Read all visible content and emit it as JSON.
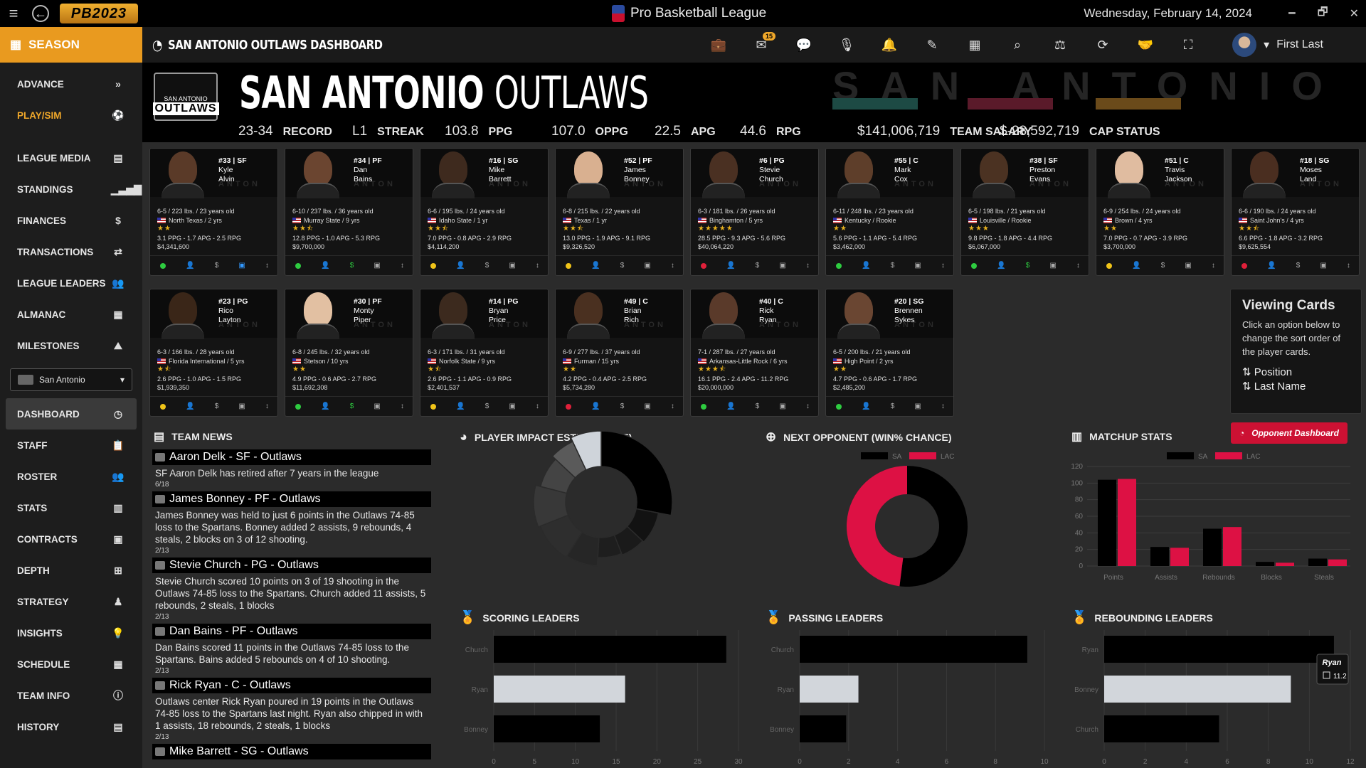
{
  "topbar": {
    "logo": "PB2023",
    "title": "Pro Basketball League",
    "date": "Wednesday, February 14, 2024",
    "win_min": "🗕",
    "win_restore": "🗗",
    "win_close": "✕"
  },
  "sidebar": {
    "season_label": "SEASON",
    "items_top": [
      {
        "label": "ADVANCE",
        "icon": "»"
      },
      {
        "label": "PLAY/SIM",
        "icon": "⚽"
      }
    ],
    "items_mid": [
      {
        "label": "LEAGUE MEDIA",
        "icon": "▤"
      },
      {
        "label": "STANDINGS",
        "icon": "▁▃▅▇"
      },
      {
        "label": "FINANCES",
        "icon": "$"
      },
      {
        "label": "TRANSACTIONS",
        "icon": "⇄"
      },
      {
        "label": "LEAGUE LEADERS",
        "icon": "👥"
      },
      {
        "label": "ALMANAC",
        "icon": "▦"
      },
      {
        "label": "MILESTONES",
        "icon": "⛰"
      }
    ],
    "team_select": "San Antonio",
    "items_team": [
      {
        "label": "DASHBOARD",
        "icon": "◷"
      },
      {
        "label": "STAFF",
        "icon": "📋"
      },
      {
        "label": "ROSTER",
        "icon": "👥"
      },
      {
        "label": "STATS",
        "icon": "▥"
      },
      {
        "label": "CONTRACTS",
        "icon": "▣"
      },
      {
        "label": "DEPTH",
        "icon": "⊞"
      },
      {
        "label": "STRATEGY",
        "icon": "♟"
      },
      {
        "label": "INSIGHTS",
        "icon": "💡"
      },
      {
        "label": "SCHEDULE",
        "icon": "▦"
      },
      {
        "label": "TEAM INFO",
        "icon": "ⓘ"
      },
      {
        "label": "HISTORY",
        "icon": "▤"
      }
    ]
  },
  "header": {
    "title": "SAN ANTONIO OUTLAWS DASHBOARD",
    "mail_badge": "15",
    "user": "First Last"
  },
  "banner": {
    "team_city": "SAN ANTONIO",
    "team_nick": "OUTLAWS",
    "bg_text": "SAN ANTONIO",
    "logo_top": "SAN ANTONIO",
    "logo_word": "OUTLAWS",
    "stats": [
      {
        "value": "23-34",
        "label": "RECORD"
      },
      {
        "value": "L1",
        "label": "STREAK"
      },
      {
        "value": "103.8",
        "label": "PPG"
      },
      {
        "value": "107.0",
        "label": "OPPG"
      },
      {
        "value": "22.5",
        "label": "APG"
      },
      {
        "value": "44.6",
        "label": "RPG"
      },
      {
        "value": "$141,006,719",
        "label": "TEAM SALARY"
      },
      {
        "value": "$-28,592,719",
        "label": "CAP STATUS"
      }
    ]
  },
  "players": [
    {
      "num": "#33 | SF",
      "first": "Kyle",
      "last": "Alvin",
      "bio": "6-5 / 223 lbs. / 23 years old",
      "school": "North Texas / 2 yrs",
      "stars": "★★",
      "line": "3.1 PPG - 1.7 APG - 2.5 RPG",
      "salary": "$4,341,600",
      "status": "#2ecc40"
    },
    {
      "num": "#34 | PF",
      "first": "Dan",
      "last": "Bains",
      "bio": "6-10 / 237 lbs. / 36 years old",
      "school": "Murray State / 9 yrs",
      "stars": "★★⯪",
      "line": "12.8 PPG - 1.0 APG - 5.3 RPG",
      "salary": "$9,700,000",
      "status": "#2ecc40"
    },
    {
      "num": "#16 | SG",
      "first": "Mike",
      "last": "Barrett",
      "bio": "6-6 / 195 lbs. / 24 years old",
      "school": "Idaho State / 1 yr",
      "stars": "★★⯪",
      "line": "7.0 PPG - 0.8 APG - 2.9 RPG",
      "salary": "$4,114,200",
      "status": "#f0c419"
    },
    {
      "num": "#52 | PF",
      "first": "James",
      "last": "Bonney",
      "bio": "6-8 / 215 lbs. / 22 years old",
      "school": "Texas / 1 yr",
      "stars": "★★⯪",
      "line": "13.0 PPG - 1.9 APG - 9.1 RPG",
      "salary": "$9,326,520",
      "status": "#f0c419"
    },
    {
      "num": "#6 | PG",
      "first": "Stevie",
      "last": "Church",
      "bio": "6-3 / 181 lbs. / 26 years old",
      "school": "Binghamton / 5 yrs",
      "stars": "★★★★★",
      "line": "28.5 PPG - 9.3 APG - 5.6 RPG",
      "salary": "$40,064,220",
      "status": "#e0203a"
    },
    {
      "num": "#55 | C",
      "first": "Mark",
      "last": "Cox",
      "bio": "6-11 / 248 lbs. / 23 years old",
      "school": "Kentucky / Rookie",
      "stars": "★★",
      "line": "5.6 PPG - 1.1 APG - 5.4 RPG",
      "salary": "$3,462,000",
      "status": "#2ecc40"
    },
    {
      "num": "#38 | SF",
      "first": "Preston",
      "last": "Evans",
      "bio": "6-5 / 198 lbs. / 21 years old",
      "school": "Louisville / Rookie",
      "stars": "★★★",
      "line": "9.8 PPG - 1.8 APG - 4.4 RPG",
      "salary": "$6,067,000",
      "status": "#2ecc40"
    },
    {
      "num": "#51 | C",
      "first": "Travis",
      "last": "Jackson",
      "bio": "6-9 / 254 lbs. / 24 years old",
      "school": "Brown / 4 yrs",
      "stars": "★★",
      "line": "7.0 PPG - 0.7 APG - 3.9 RPG",
      "salary": "$3,700,000",
      "status": "#f0c419"
    },
    {
      "num": "#18 | SG",
      "first": "Moses",
      "last": "Land",
      "bio": "6-6 / 190 lbs. / 24 years old",
      "school": "Saint John's / 4 yrs",
      "stars": "★★⯪",
      "line": "6.6 PPG - 1.8 APG - 3.2 RPG",
      "salary": "$9,625,554",
      "status": "#e0203a"
    },
    {
      "num": "#23 | PG",
      "first": "Rico",
      "last": "Layton",
      "bio": "6-3 / 166 lbs. / 28 years old",
      "school": "Florida International / 5 yrs",
      "stars": "★⯪",
      "line": "2.6 PPG - 1.0 APG - 1.5 RPG",
      "salary": "$1,939,350",
      "status": "#f0c419"
    },
    {
      "num": "#30 | PF",
      "first": "Monty",
      "last": "Piper",
      "bio": "6-8 / 245 lbs. / 32 years old",
      "school": "Stetson / 10 yrs",
      "stars": "★★",
      "line": "4.9 PPG - 0.6 APG - 2.7 RPG",
      "salary": "$11,692,308",
      "status": "#2ecc40"
    },
    {
      "num": "#14 | PG",
      "first": "Bryan",
      "last": "Price",
      "bio": "6-3 / 171 lbs. / 31 years old",
      "school": "Norfolk State / 9 yrs",
      "stars": "★⯪",
      "line": "2.6 PPG - 1.1 APG - 0.9 RPG",
      "salary": "$2,401,537",
      "status": "#f0c419"
    },
    {
      "num": "#49 | C",
      "first": "Brian",
      "last": "Rich",
      "bio": "6-9 / 277 lbs. / 37 years old",
      "school": "Furman / 15 yrs",
      "stars": "★★",
      "line": "4.2 PPG - 0.4 APG - 2.5 RPG",
      "salary": "$5,734,280",
      "status": "#e0203a"
    },
    {
      "num": "#40 | C",
      "first": "Rick",
      "last": "Ryan",
      "bio": "7-1 / 287 lbs. / 27 years old",
      "school": "Arkansas-Little Rock / 6 yrs",
      "stars": "★★★⯪",
      "line": "16.1 PPG - 2.4 APG - 11.2 RPG",
      "salary": "$20,000,000",
      "status": "#2ecc40"
    },
    {
      "num": "#20 | SG",
      "first": "Brennen",
      "last": "Sykes",
      "bio": "6-5 / 200 lbs. / 21 years old",
      "school": "High Point / 2 yrs",
      "stars": "★★",
      "line": "4.7 PPG - 0.6 APG - 1.7 RPG",
      "salary": "$2,485,200",
      "status": "#2ecc40"
    }
  ],
  "viewing_cards": {
    "title": "Viewing Cards",
    "text": "Click an option below to change the sort order of the player cards.",
    "opt1": "Position",
    "opt2": "Last Name"
  },
  "team_news": {
    "title": "TEAM NEWS",
    "items": [
      {
        "head": "Aaron Delk - SF - Outlaws",
        "body": "SF Aaron Delk has retired after 7 years in the league",
        "date": "6/18"
      },
      {
        "head": "James Bonney - PF - Outlaws",
        "body": "James Bonney was held to just 6 points in the Outlaws 74-85 loss to the Spartans. Bonney added 2 assists, 9 rebounds, 4 steals, 2 blocks on 3 of 12 shooting.",
        "date": "2/13"
      },
      {
        "head": "Stevie Church - PG - Outlaws",
        "body": "Stevie Church scored 10 points on 3 of 19 shooting in the Outlaws 74-85 loss to the Spartans. Church added 11 assists, 5 rebounds, 2 steals, 1 blocks",
        "date": "2/13"
      },
      {
        "head": "Dan Bains - PF - Outlaws",
        "body": "Dan Bains scored 11 points in the Outlaws 74-85 loss to the Spartans. Bains added 5 rebounds on 4 of 10 shooting.",
        "date": "2/13"
      },
      {
        "head": "Rick Ryan - C - Outlaws",
        "body": "Outlaws center Rick Ryan poured in 19 points in the Outlaws 74-85 loss to the Spartans last night. Ryan also chipped in with 1 assists, 18 rebounds, 2 steals, 1 blocks",
        "date": "2/13"
      },
      {
        "head": "Mike Barrett - SG - Outlaws",
        "body": "",
        "date": ""
      }
    ]
  },
  "pie_title": "PLAYER IMPACT ESTIMATE (PIE)",
  "opp_title": "NEXT OPPONENT (WIN% CHANCE)",
  "matchup_title": "MATCHUP STATS",
  "opp_button": "Opponent Dashboard",
  "scoring_title": "SCORING LEADERS",
  "passing_title": "PASSING LEADERS",
  "rebounding_title": "REBOUNDING LEADERS",
  "tooltip": {
    "name": "Ryan",
    "value": "11.2"
  },
  "colors": {
    "sa": "#000000",
    "opp": "#dd1144",
    "accent": "#e99a1f"
  },
  "chart_data": [
    {
      "type": "pie",
      "title": "PLAYER IMPACT ESTIMATE (PIE)",
      "values": [
        28,
        9,
        7,
        7,
        8,
        10,
        10,
        8,
        6,
        7
      ]
    },
    {
      "type": "pie",
      "title": "NEXT OPPONENT (WIN% CHANCE)",
      "legend": [
        "SA",
        "LAC"
      ],
      "values": [
        52,
        48
      ]
    },
    {
      "type": "bar",
      "title": "MATCHUP STATS",
      "categories": [
        "Points",
        "Assists",
        "Rebounds",
        "Blocks",
        "Steals"
      ],
      "series": [
        {
          "name": "SA",
          "values": [
            104,
            23,
            45,
            5,
            9
          ]
        },
        {
          "name": "LAC",
          "values": [
            105,
            22,
            47,
            4,
            8
          ]
        }
      ],
      "ylim": [
        0,
        120
      ],
      "yticks": [
        "0",
        "20",
        "40",
        "60",
        "80",
        "100",
        "120"
      ]
    },
    {
      "type": "bar",
      "title": "SCORING LEADERS",
      "categories": [
        "Church",
        "Ryan",
        "Bonney"
      ],
      "values": [
        28.5,
        16.1,
        13.0
      ],
      "xlim": [
        0,
        30
      ],
      "xticks": [
        "0",
        "5",
        "10",
        "15",
        "20",
        "25",
        "30"
      ]
    },
    {
      "type": "bar",
      "title": "PASSING LEADERS",
      "categories": [
        "Church",
        "Ryan",
        "Bonney"
      ],
      "values": [
        9.3,
        2.4,
        1.9
      ],
      "xlim": [
        0,
        10
      ],
      "xticks": [
        "0",
        "2",
        "4",
        "6",
        "8",
        "10"
      ]
    },
    {
      "type": "bar",
      "title": "REBOUNDING LEADERS",
      "categories": [
        "Ryan",
        "Bonney",
        "Church"
      ],
      "values": [
        11.2,
        9.1,
        5.6
      ],
      "xlim": [
        0,
        12
      ],
      "xticks": [
        "0",
        "2",
        "4",
        "6",
        "8",
        "10",
        "12"
      ]
    }
  ]
}
